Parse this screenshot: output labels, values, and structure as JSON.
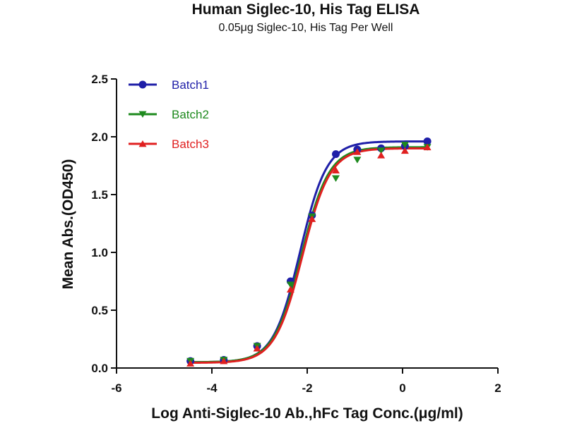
{
  "chart_data": {
    "type": "scatter",
    "title": "Human Siglec-10,  His Tag ELISA",
    "subtitle": "0.05μg Siglec-10, His Tag Per Well",
    "xlabel": "Log Anti-Siglec-10 Ab.,hFc Tag Conc.(μg/ml)",
    "ylabel": "Mean Abs.(OD450)",
    "xlim": [
      -6,
      2
    ],
    "ylim": [
      0,
      2.5
    ],
    "x_ticks": [
      "-6",
      "-4",
      "-2",
      "0",
      "2"
    ],
    "y_ticks": [
      "0.0",
      "0.5",
      "1.0",
      "1.5",
      "2.0",
      "2.5"
    ],
    "grid": false,
    "legend_position": "top-left",
    "x": [
      -4.45,
      -3.75,
      -3.05,
      -2.35,
      -1.9,
      -1.4,
      -0.95,
      -0.45,
      0.05,
      0.52
    ],
    "series": [
      {
        "name": "Batch1",
        "color": "#1f1fa8",
        "marker": "circle",
        "values": [
          0.06,
          0.07,
          0.19,
          0.75,
          1.32,
          1.85,
          1.89,
          1.9,
          1.92,
          1.96
        ],
        "fit": {
          "bottom": 0.05,
          "top": 1.96,
          "ec50_log": -2.15,
          "hill": 1.55
        }
      },
      {
        "name": "Batch2",
        "color": "#1e8a1e",
        "marker": "triangle-down",
        "values": [
          0.06,
          0.07,
          0.19,
          0.72,
          1.31,
          1.64,
          1.8,
          1.88,
          1.93,
          1.91
        ],
        "fit": {
          "bottom": 0.05,
          "top": 1.91,
          "ec50_log": -2.12,
          "hill": 1.5
        }
      },
      {
        "name": "Batch3",
        "color": "#e02020",
        "marker": "triangle-up",
        "values": [
          0.04,
          0.06,
          0.17,
          0.68,
          1.29,
          1.71,
          1.87,
          1.84,
          1.88,
          1.91
        ],
        "fit": {
          "bottom": 0.045,
          "top": 1.9,
          "ec50_log": -2.1,
          "hill": 1.5
        }
      }
    ]
  }
}
